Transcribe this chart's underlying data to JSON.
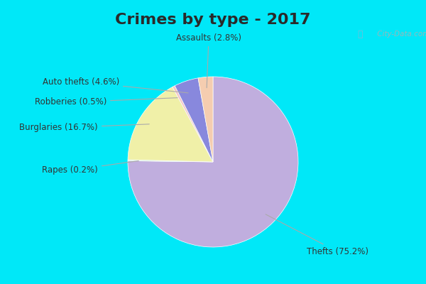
{
  "title": "Crimes by type - 2017",
  "slices": [
    {
      "label": "Thefts (75.2%)",
      "value": 75.2,
      "color": "#c0aede"
    },
    {
      "label": "Rapes (0.2%)",
      "value": 0.2,
      "color": "#c0ddc0"
    },
    {
      "label": "Burglaries (16.7%)",
      "value": 16.7,
      "color": "#f0f0a8"
    },
    {
      "label": "Robberies (0.5%)",
      "value": 0.5,
      "color": "#f5c8c8"
    },
    {
      "label": "Auto thefts (4.6%)",
      "value": 4.6,
      "color": "#8888dd"
    },
    {
      "label": "Assaults (2.8%)",
      "value": 2.8,
      "color": "#f5cdb0"
    }
  ],
  "bg_color": "#d8eee0",
  "title_bg": "#00e8f8",
  "border_color": "#00e8f8",
  "title_fontsize": 16,
  "title_color": "#2a2a2a",
  "label_fontsize": 8.5,
  "watermark": " City-Data.com"
}
